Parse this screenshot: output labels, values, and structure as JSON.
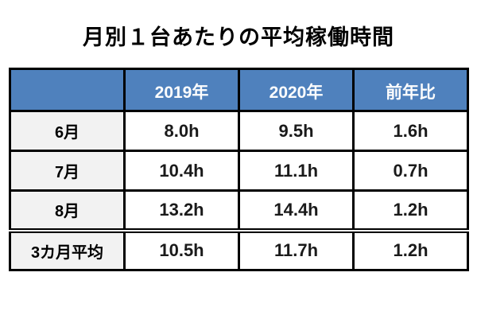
{
  "title": "月別１台あたりの平均稼働時間",
  "table": {
    "header": {
      "corner": "",
      "columns": [
        "2019年",
        "2020年",
        "前年比"
      ]
    },
    "rows": [
      {
        "label": "6月",
        "values": [
          "8.0h",
          "9.5h",
          "1.6h"
        ],
        "summary": false
      },
      {
        "label": "7月",
        "values": [
          "10.4h",
          "11.1h",
          "0.7h"
        ],
        "summary": false
      },
      {
        "label": "8月",
        "values": [
          "13.2h",
          "14.4h",
          "1.2h"
        ],
        "summary": false
      },
      {
        "label": "3カ月平均",
        "values": [
          "10.5h",
          "11.7h",
          "1.2h"
        ],
        "summary": true
      }
    ],
    "colors": {
      "header_bg": "#4f81bd",
      "header_text": "#ffffff",
      "row_label_bg": "#f2f2f2",
      "cell_bg": "#ffffff",
      "border": "#000000"
    }
  },
  "chart_data": {
    "type": "table",
    "title": "月別１台あたりの平均稼働時間",
    "columns": [
      "",
      "2019年",
      "2020年",
      "前年比"
    ],
    "rows": [
      [
        "6月",
        "8.0h",
        "9.5h",
        "1.6h"
      ],
      [
        "7月",
        "10.4h",
        "11.1h",
        "0.7h"
      ],
      [
        "8月",
        "13.2h",
        "14.4h",
        "1.2h"
      ],
      [
        "3カ月平均",
        "10.5h",
        "11.7h",
        "1.2h"
      ]
    ],
    "notes": "summary row 3カ月平均 separated from monthly rows by a double rule; header row blue with white text; row-label column light gray"
  }
}
